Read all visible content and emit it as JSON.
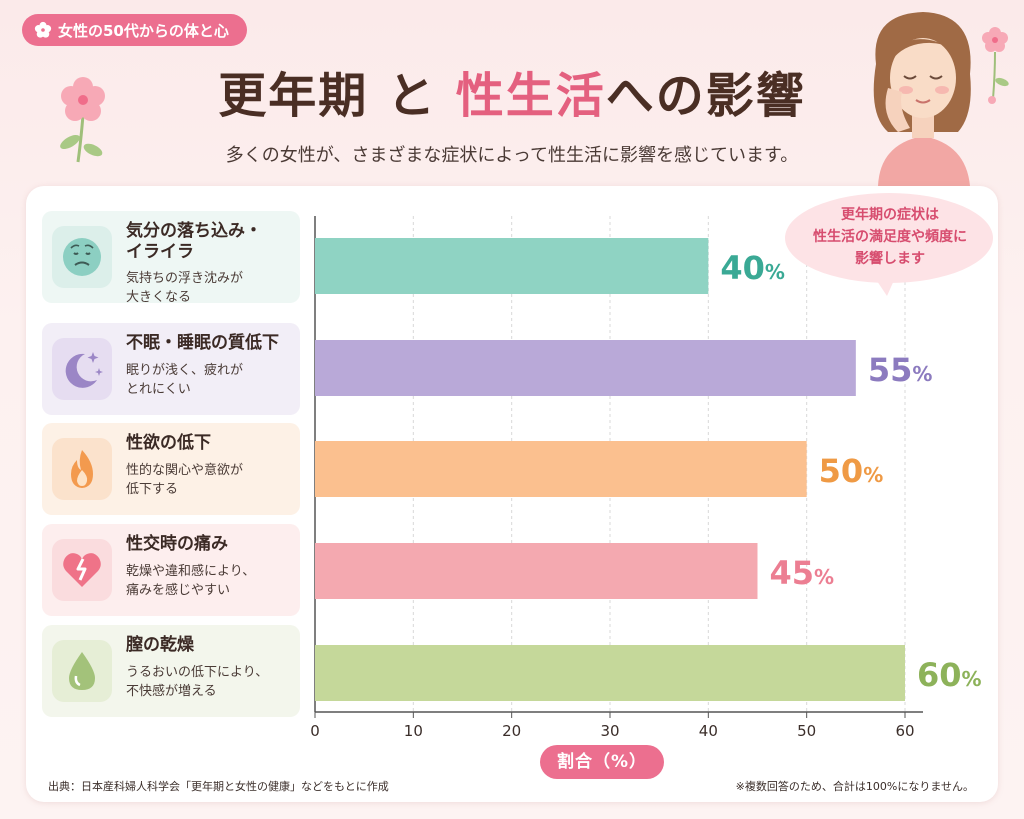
{
  "header": {
    "badge": "女性の50代からの体と心",
    "title_part1": "更年期",
    "title_part2": "と",
    "title_accent": "性生活",
    "title_part3": "への影響",
    "subtitle": "多くの女性が、さまざまな症状によって性生活に影響を感じています。"
  },
  "categories": [
    {
      "title_line1": "気分の落ち込み・",
      "title_line2": "イライラ",
      "desc_line1": "気持ちの浮き沈みが",
      "desc_line2": "大きくなる",
      "icon": "sad-face-icon",
      "bg": "#eef7f4",
      "icon_bg": "#dcefea",
      "icon_color": "#8ccfc2"
    },
    {
      "title_line1": "不眠・睡眠の質低下",
      "title_line2": "",
      "desc_line1": "眠りが浅く、疲れが",
      "desc_line2": "とれにくい",
      "icon": "moon-stars-icon",
      "bg": "#f2eef7",
      "icon_bg": "#e6ddf1",
      "icon_color": "#9b86c6"
    },
    {
      "title_line1": "性欲の低下",
      "title_line2": "",
      "desc_line1": "性的な関心や意欲が",
      "desc_line2": "低下する",
      "icon": "flame-icon",
      "bg": "#fdf1e6",
      "icon_bg": "#fbe2cc",
      "icon_color": "#f39a4e"
    },
    {
      "title_line1": "性交時の痛み",
      "title_line2": "",
      "desc_line1": "乾燥や違和感により、",
      "desc_line2": "痛みを感じやすい",
      "icon": "broken-heart-icon",
      "bg": "#fdeeee",
      "icon_bg": "#fadcde",
      "icon_color": "#ef7388"
    },
    {
      "title_line1": "膣の乾燥",
      "title_line2": "",
      "desc_line1": "うるおいの低下により、",
      "desc_line2": "不快感が増える",
      "icon": "droplet-icon",
      "bg": "#f3f6ec",
      "icon_bg": "#e6eed6",
      "icon_color": "#a3c27a"
    }
  ],
  "chart_data": {
    "type": "bar",
    "orientation": "horizontal",
    "categories": [
      "気分の落ち込み・イライラ",
      "不眠・睡眠の質低下",
      "性欲の低下",
      "性交時の痛み",
      "膣の乾燥"
    ],
    "values": [
      40,
      55,
      50,
      45,
      60
    ],
    "value_labels": [
      "40",
      "55",
      "50",
      "45",
      "60"
    ],
    "unit": "%",
    "colors": [
      "#8fd3c3",
      "#b9a9d8",
      "#fbc08f",
      "#f4a9b0",
      "#c5d89a"
    ],
    "label_colors": [
      "#3aa995",
      "#8c7bbf",
      "#ef9a45",
      "#ec7e92",
      "#8db25a"
    ],
    "xlim": [
      0,
      60
    ],
    "xticks": [
      "0",
      "10",
      "20",
      "30",
      "40",
      "50",
      "60"
    ],
    "xlabel": "割合（%）",
    "grid": true
  },
  "bubble": {
    "line1": "更年期の症状は",
    "line2": "性生活の満足度や頻度に",
    "line3": "影響します"
  },
  "footer": {
    "source": "出典：日本産科婦人科学会「更年期と女性の健康」などをもとに作成",
    "note": "※複数回答のため、合計は100%になりません。"
  }
}
